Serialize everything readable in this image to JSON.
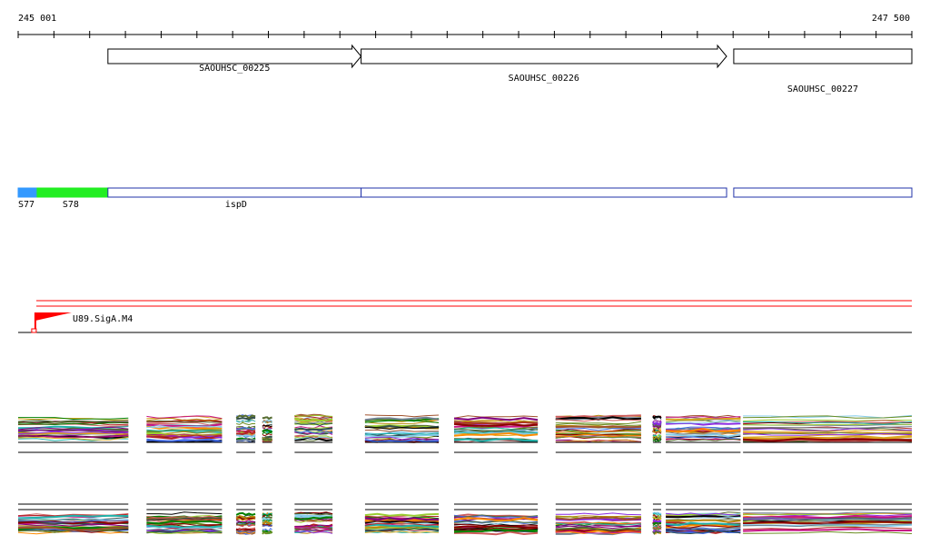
{
  "ruler": {
    "start_label": "245 001",
    "end_label": "247 500",
    "start": 245001,
    "end": 247500
  },
  "genes": [
    {
      "label": "SAOUHSC_00225",
      "start": 245252,
      "end": 245960,
      "strand": "+"
    },
    {
      "label": "SAOUHSC_00226",
      "start": 245960,
      "end": 246982,
      "strand": "+"
    },
    {
      "label": "SAOUHSC_00227",
      "start": 247002,
      "end": 247500,
      "strand": "none"
    }
  ],
  "segments": [
    {
      "label": "S77",
      "start": 245001,
      "end": 245054,
      "color": "#3399ff",
      "filled": true
    },
    {
      "label": "S78",
      "start": 245054,
      "end": 245252,
      "color": "#22ee22",
      "filled": true
    },
    {
      "label": "ispD",
      "start": 245252,
      "end": 245960,
      "color": "#2233aa",
      "filled": false
    },
    {
      "label": "",
      "start": 245960,
      "end": 246982,
      "color": "#2233aa",
      "filled": false
    },
    {
      "label": "",
      "start": 247002,
      "end": 247500,
      "color": "#2233aa",
      "filled": false
    }
  ],
  "promoter": {
    "label": "U89.SigA.M4",
    "position": 245049,
    "color": "#ff0000"
  },
  "expression_blocks": [
    {
      "start": 245001,
      "end": 245309
    },
    {
      "start": 245360,
      "end": 245571
    },
    {
      "start": 245611,
      "end": 245664
    },
    {
      "start": 245684,
      "end": 245711
    },
    {
      "start": 245774,
      "end": 245880
    },
    {
      "start": 245971,
      "end": 246177
    },
    {
      "start": 246220,
      "end": 246454
    },
    {
      "start": 246504,
      "end": 246743
    },
    {
      "start": 246776,
      "end": 246799
    },
    {
      "start": 246812,
      "end": 247021
    },
    {
      "start": 247028,
      "end": 247500
    }
  ]
}
